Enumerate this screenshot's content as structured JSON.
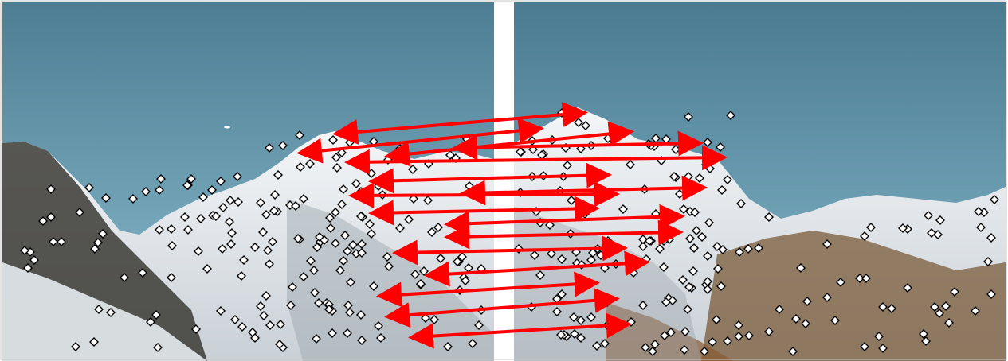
{
  "scene": {
    "description_tag": "panorama-feature-matching",
    "colors": {
      "sky_top": "#4f7f94",
      "sky_bottom": "#7fb0c4",
      "snow": "#f1f3f5",
      "rock_dark": "#3a3a36",
      "rock_brown": "#7a5a38",
      "divider": "#ffffff",
      "keypoint_fill": "#ffffff",
      "keypoint_stroke": "#000000",
      "match_line": "#ff0000"
    },
    "panels": [
      {
        "name": "left-photo",
        "keypoint_count": 180
      },
      {
        "name": "right-photo",
        "keypoint_count": 180
      }
    ],
    "match_count": 16
  }
}
